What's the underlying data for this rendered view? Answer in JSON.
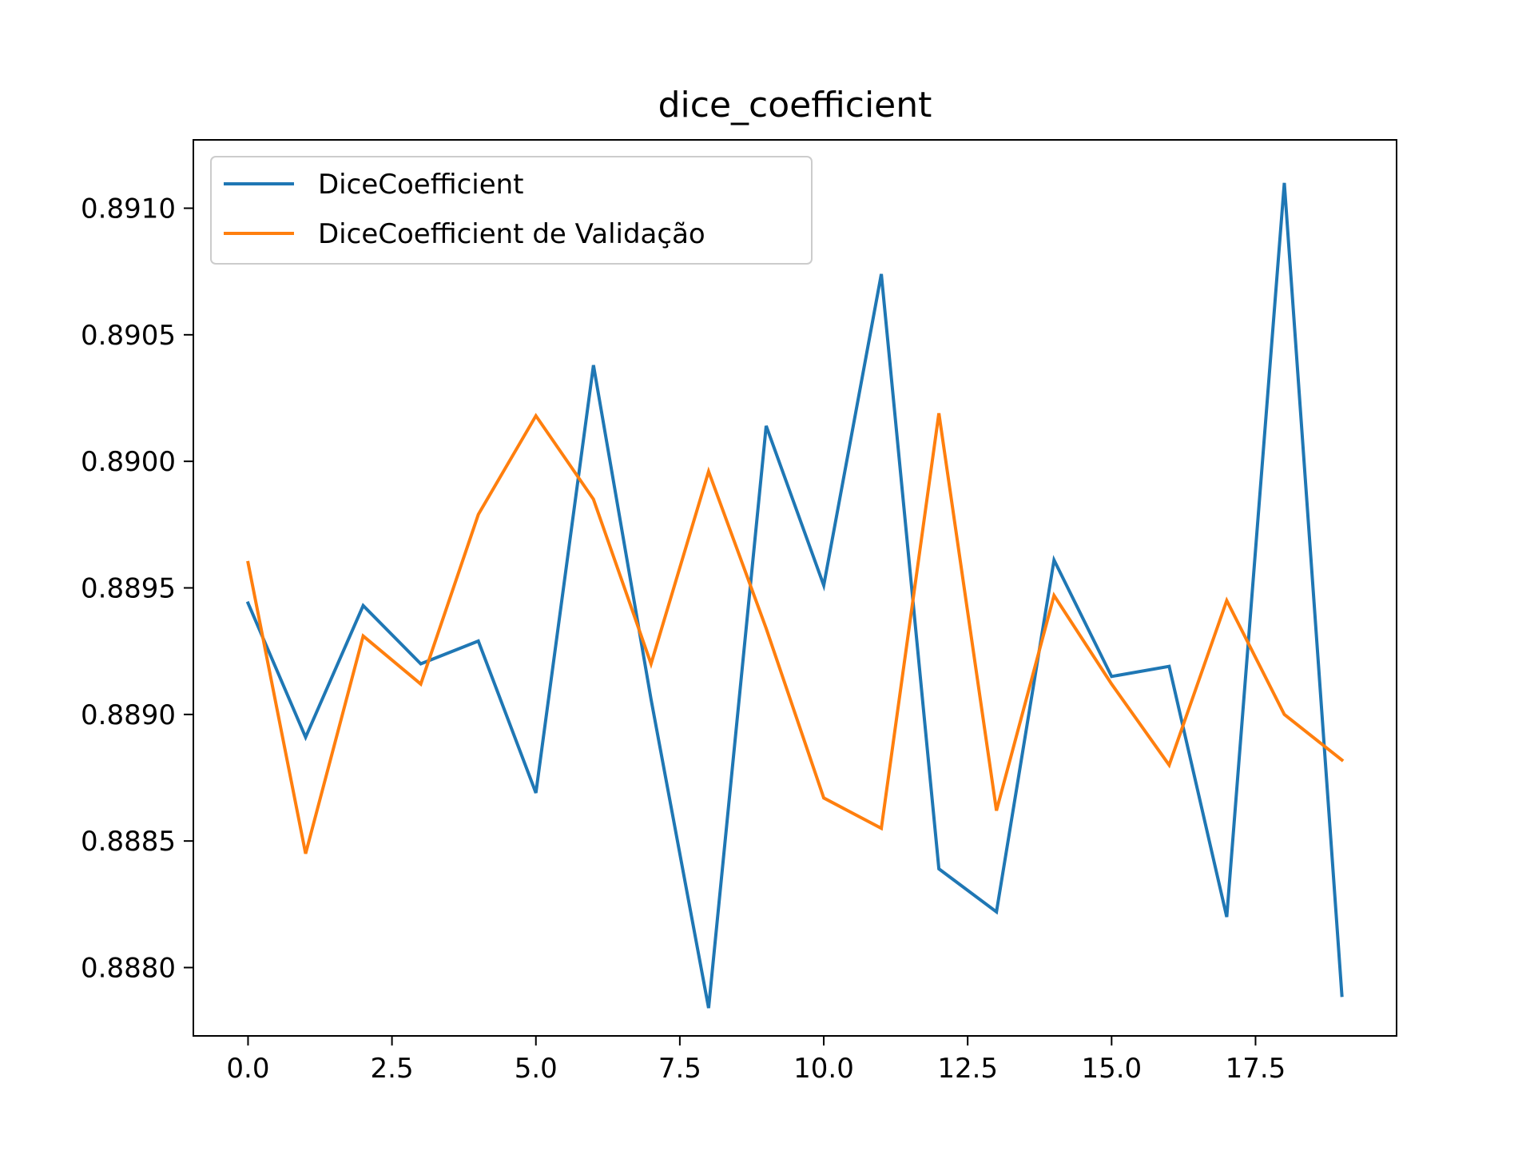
{
  "chart_data": {
    "type": "line",
    "title": "dice_coefficient",
    "xlabel": "",
    "ylabel": "",
    "xlim": [
      -0.95,
      19.95
    ],
    "ylim": [
      0.88773,
      0.89127
    ],
    "xticks": [
      0,
      2.5,
      5,
      7.5,
      10,
      12.5,
      15,
      17.5
    ],
    "xtick_labels": [
      "0.0",
      "2.5",
      "5.0",
      "7.5",
      "10.0",
      "12.5",
      "15.0",
      "17.5"
    ],
    "yticks": [
      0.888,
      0.8885,
      0.889,
      0.8895,
      0.89,
      0.8905,
      0.891
    ],
    "ytick_labels": [
      "0.8880",
      "0.8885",
      "0.8890",
      "0.8895",
      "0.8900",
      "0.8905",
      "0.8910"
    ],
    "grid": false,
    "legend_position": "upper-left",
    "x": [
      0,
      1,
      2,
      3,
      4,
      5,
      6,
      7,
      8,
      9,
      10,
      11,
      12,
      13,
      14,
      15,
      16,
      17,
      18,
      19
    ],
    "series": [
      {
        "name": "DiceCoefficient",
        "color": "#1f77b4",
        "values": [
          0.88944,
          0.88891,
          0.88943,
          0.8892,
          0.88929,
          0.88869,
          0.89038,
          0.88906,
          0.88784,
          0.89014,
          0.88951,
          0.89074,
          0.88839,
          0.88822,
          0.88961,
          0.88915,
          0.88919,
          0.8882,
          0.8911,
          0.88789
        ]
      },
      {
        "name": "DiceCoefficient de Validação",
        "color": "#ff7f0e",
        "values": [
          0.8896,
          0.88845,
          0.88931,
          0.88912,
          0.88979,
          0.89018,
          0.88985,
          0.8892,
          0.88996,
          0.88934,
          0.88867,
          0.88855,
          0.89019,
          0.88862,
          0.88947,
          0.88912,
          0.8888,
          0.88945,
          0.889,
          0.88882
        ]
      }
    ]
  }
}
